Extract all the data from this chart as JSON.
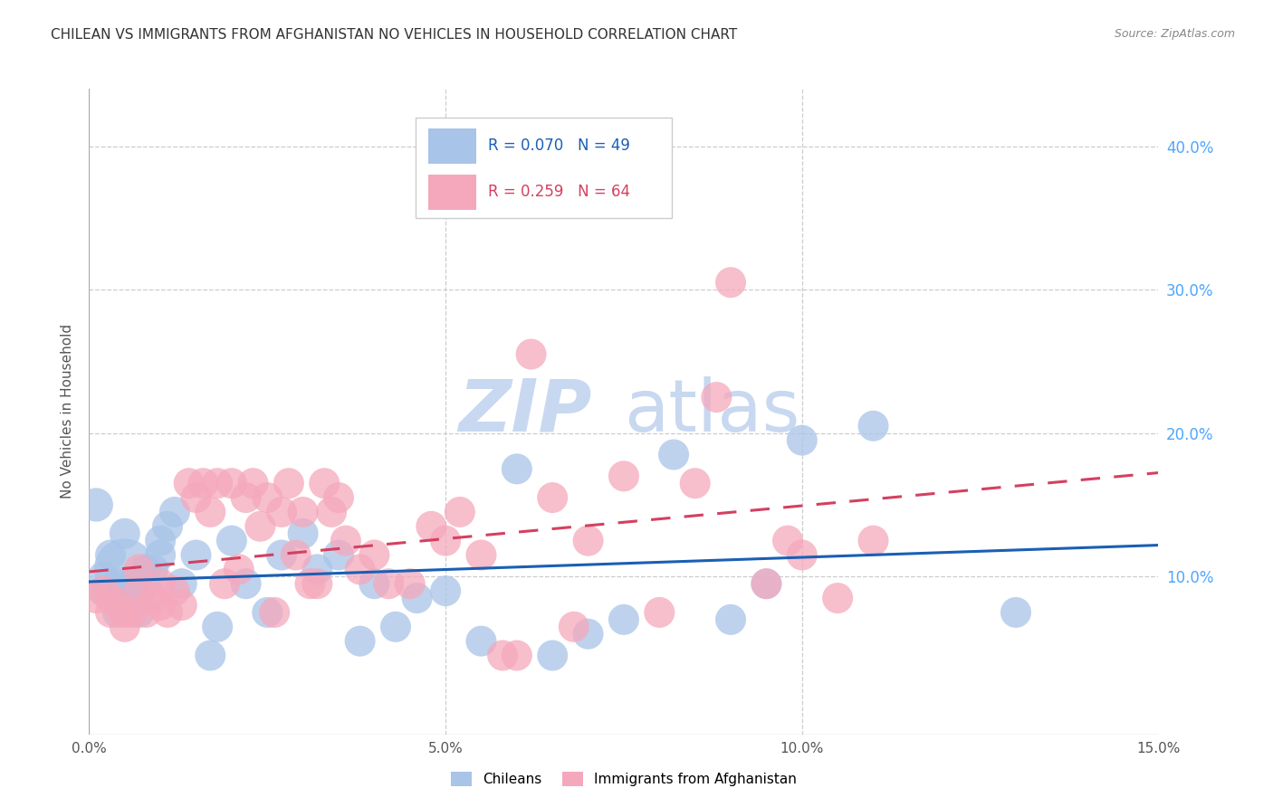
{
  "title": "CHILEAN VS IMMIGRANTS FROM AFGHANISTAN NO VEHICLES IN HOUSEHOLD CORRELATION CHART",
  "source": "Source: ZipAtlas.com",
  "ylabel": "No Vehicles in Household",
  "xlim": [
    0.0,
    0.15
  ],
  "ylim": [
    -0.01,
    0.44
  ],
  "yticks": [
    0.1,
    0.2,
    0.3,
    0.4
  ],
  "xticks": [
    0.0,
    0.05,
    0.1,
    0.15
  ],
  "xtick_labels": [
    "0.0%",
    "5.0%",
    "10.0%",
    "15.0%"
  ],
  "ytick_labels_right": [
    "10.0%",
    "20.0%",
    "30.0%",
    "40.0%"
  ],
  "series1_label": "Chileans",
  "series2_label": "Immigrants from Afghanistan",
  "series1_color": "#a8c4e8",
  "series2_color": "#f5a8bc",
  "series1_R": "0.070",
  "series1_N": "49",
  "series2_R": "0.259",
  "series2_N": "64",
  "trendline1_color": "#1a5fb4",
  "trendline2_color": "#d44060",
  "watermark_zip": "ZIP",
  "watermark_atlas": "atlas",
  "watermark_color_zip": "#c8d8f0",
  "watermark_color_atlas": "#c8d8f0",
  "series1_x": [
    0.001,
    0.002,
    0.002,
    0.003,
    0.003,
    0.004,
    0.004,
    0.004,
    0.005,
    0.005,
    0.005,
    0.006,
    0.006,
    0.007,
    0.007,
    0.008,
    0.008,
    0.009,
    0.01,
    0.01,
    0.011,
    0.012,
    0.013,
    0.015,
    0.017,
    0.018,
    0.02,
    0.022,
    0.025,
    0.027,
    0.03,
    0.032,
    0.035,
    0.038,
    0.04,
    0.043,
    0.046,
    0.05,
    0.055,
    0.06,
    0.065,
    0.07,
    0.075,
    0.082,
    0.09,
    0.095,
    0.1,
    0.11,
    0.13
  ],
  "series1_y": [
    0.15,
    0.1,
    0.09,
    0.115,
    0.09,
    0.095,
    0.085,
    0.075,
    0.105,
    0.13,
    0.09,
    0.095,
    0.08,
    0.085,
    0.075,
    0.095,
    0.105,
    0.105,
    0.125,
    0.115,
    0.135,
    0.145,
    0.095,
    0.115,
    0.045,
    0.065,
    0.125,
    0.095,
    0.075,
    0.115,
    0.13,
    0.105,
    0.115,
    0.055,
    0.095,
    0.065,
    0.085,
    0.09,
    0.055,
    0.175,
    0.045,
    0.06,
    0.07,
    0.185,
    0.07,
    0.095,
    0.195,
    0.205,
    0.075
  ],
  "series1_size": [
    60,
    50,
    50,
    50,
    50,
    50,
    50,
    50,
    200,
    50,
    50,
    50,
    50,
    50,
    50,
    50,
    50,
    50,
    50,
    50,
    50,
    50,
    50,
    50,
    50,
    50,
    50,
    50,
    50,
    50,
    50,
    50,
    50,
    50,
    50,
    50,
    50,
    50,
    50,
    50,
    50,
    50,
    50,
    50,
    50,
    50,
    50,
    50,
    50
  ],
  "series2_x": [
    0.001,
    0.002,
    0.003,
    0.003,
    0.004,
    0.005,
    0.005,
    0.006,
    0.007,
    0.007,
    0.008,
    0.009,
    0.01,
    0.01,
    0.011,
    0.012,
    0.013,
    0.014,
    0.015,
    0.016,
    0.017,
    0.018,
    0.019,
    0.02,
    0.021,
    0.022,
    0.023,
    0.024,
    0.025,
    0.026,
    0.027,
    0.028,
    0.029,
    0.03,
    0.031,
    0.032,
    0.033,
    0.034,
    0.035,
    0.036,
    0.038,
    0.04,
    0.042,
    0.045,
    0.048,
    0.05,
    0.052,
    0.055,
    0.058,
    0.06,
    0.062,
    0.065,
    0.068,
    0.07,
    0.075,
    0.08,
    0.085,
    0.088,
    0.09,
    0.095,
    0.098,
    0.1,
    0.105,
    0.11
  ],
  "series2_y": [
    0.085,
    0.09,
    0.085,
    0.075,
    0.08,
    0.075,
    0.065,
    0.075,
    0.105,
    0.09,
    0.075,
    0.085,
    0.08,
    0.095,
    0.075,
    0.09,
    0.08,
    0.165,
    0.155,
    0.165,
    0.145,
    0.165,
    0.095,
    0.165,
    0.105,
    0.155,
    0.165,
    0.135,
    0.155,
    0.075,
    0.145,
    0.165,
    0.115,
    0.145,
    0.095,
    0.095,
    0.165,
    0.145,
    0.155,
    0.125,
    0.105,
    0.115,
    0.095,
    0.095,
    0.135,
    0.125,
    0.145,
    0.115,
    0.045,
    0.045,
    0.255,
    0.155,
    0.065,
    0.125,
    0.17,
    0.075,
    0.165,
    0.225,
    0.305,
    0.095,
    0.125,
    0.115,
    0.085,
    0.125
  ],
  "series2_size": [
    50,
    50,
    50,
    50,
    50,
    50,
    50,
    50,
    50,
    50,
    50,
    50,
    50,
    50,
    50,
    50,
    50,
    50,
    50,
    50,
    50,
    50,
    50,
    50,
    50,
    50,
    50,
    50,
    50,
    50,
    50,
    50,
    50,
    50,
    50,
    50,
    50,
    50,
    50,
    50,
    50,
    50,
    50,
    50,
    50,
    50,
    50,
    50,
    50,
    50,
    50,
    50,
    50,
    50,
    50,
    50,
    50,
    50,
    50,
    50,
    50,
    50,
    50,
    50
  ]
}
